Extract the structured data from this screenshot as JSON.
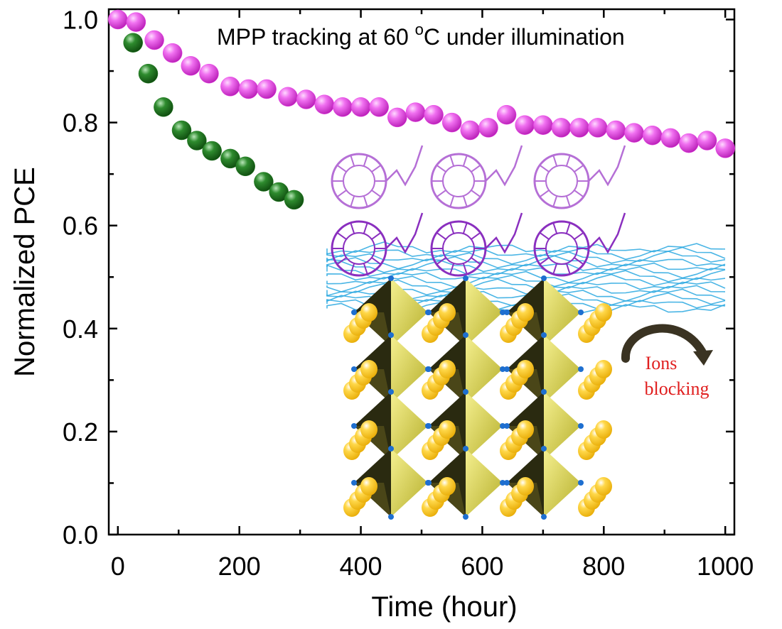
{
  "chart_data": {
    "type": "scatter",
    "title": "",
    "annotation": {
      "prefix": "MPP tracking at 60 ",
      "degree": "o",
      "suffix": "C under illumination"
    },
    "inset_label": {
      "line1": "Ions",
      "line2": "blocking"
    },
    "xlabel": "Time (hour)",
    "ylabel": "Normalized PCE",
    "xlim": [
      -15,
      1015
    ],
    "ylim": [
      0.0,
      1.02
    ],
    "xticks": [
      0,
      200,
      400,
      600,
      800,
      1000
    ],
    "xtick_labels": [
      "0",
      "200",
      "400",
      "600",
      "800",
      "1000"
    ],
    "yticks": [
      0.0,
      0.2,
      0.4,
      0.6,
      0.8,
      1.0
    ],
    "ytick_labels": [
      "0.0",
      "0.2",
      "0.4",
      "0.6",
      "0.8",
      "1.0"
    ],
    "grid": false,
    "legend": "none",
    "series": [
      {
        "color": "#e940e6",
        "x": [
          0,
          30,
          60,
          90,
          120,
          150,
          185,
          215,
          245,
          280,
          310,
          340,
          370,
          400,
          430,
          460,
          490,
          520,
          550,
          580,
          610,
          640,
          670,
          700,
          730,
          760,
          790,
          820,
          850,
          880,
          910,
          940,
          970,
          1000
        ],
        "y": [
          1.0,
          0.995,
          0.96,
          0.935,
          0.91,
          0.895,
          0.87,
          0.865,
          0.865,
          0.85,
          0.845,
          0.835,
          0.83,
          0.83,
          0.83,
          0.81,
          0.82,
          0.815,
          0.8,
          0.785,
          0.79,
          0.815,
          0.795,
          0.795,
          0.79,
          0.79,
          0.79,
          0.785,
          0.78,
          0.775,
          0.77,
          0.76,
          0.765,
          0.75
        ]
      },
      {
        "color": "#1f7a1f",
        "x": [
          25,
          50,
          75,
          105,
          130,
          155,
          185,
          210,
          240,
          265,
          290
        ],
        "y": [
          0.955,
          0.895,
          0.83,
          0.785,
          0.765,
          0.745,
          0.73,
          0.715,
          0.685,
          0.665,
          0.65
        ]
      }
    ]
  }
}
